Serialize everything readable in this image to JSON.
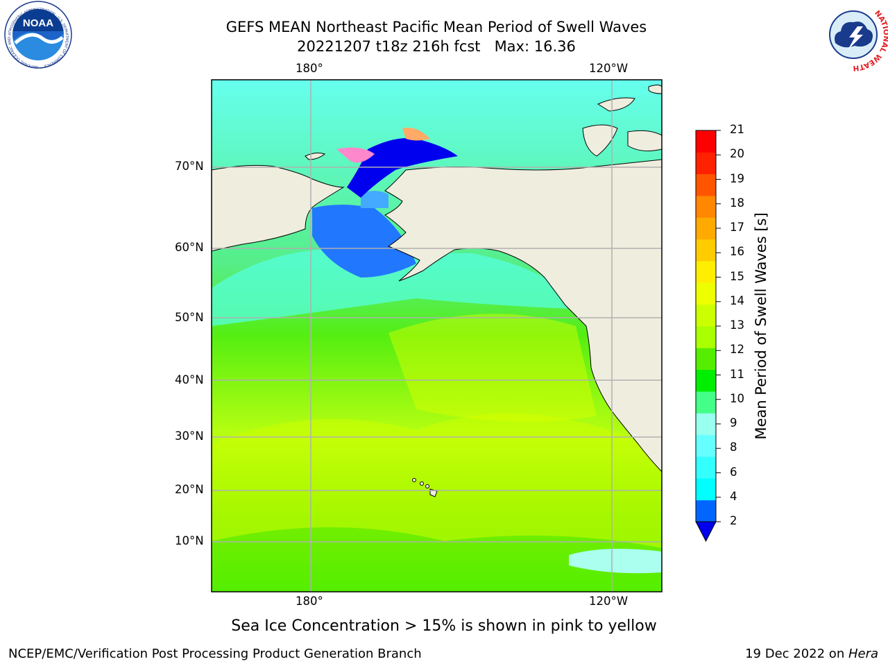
{
  "header": {
    "title_line1": "GEFS MEAN Northeast Pacific Mean Period of Swell Waves",
    "title_line2": "20221207 t18z 216h fcst   Max: 16.36"
  },
  "logos": {
    "noaa_text": "NOAA",
    "noaa_ring_text": "NATIONAL OCEANIC AND ATMOSPHERIC ADMINISTRATION · U.S. DEPARTMENT OF COMMERCE",
    "nws_ring_text": "NATIONAL WEATHER SERVICE"
  },
  "map": {
    "lon_labels_top": [
      "180°",
      "120°W"
    ],
    "lon_labels_bottom": [
      "180°",
      "120°W"
    ],
    "lat_labels": [
      "70°N",
      "60°N",
      "50°N",
      "40°N",
      "30°N",
      "20°N",
      "10°N"
    ],
    "colors": {
      "land": "#efedde",
      "grid": "#b0b0b0"
    }
  },
  "colorbar": {
    "label": "Mean Period of Swell Waves [s]",
    "ticks": [
      "21",
      "20",
      "19",
      "18",
      "17",
      "16",
      "15",
      "14",
      "13",
      "12",
      "11",
      "10",
      "9",
      "8",
      "6",
      "4",
      "2"
    ],
    "colors": [
      "#0000ee",
      "#0066ff",
      "#00ffff",
      "#33ffff",
      "#66ffff",
      "#99ffee",
      "#44ff88",
      "#00ee00",
      "#55ee00",
      "#aaff00",
      "#ccff00",
      "#eeff00",
      "#ffee00",
      "#ffcc00",
      "#ffaa00",
      "#ff8800",
      "#ff5500",
      "#ff2200",
      "#ff0000"
    ]
  },
  "caption": "Sea Ice Concentration > 15% is shown in pink to yellow",
  "footer": {
    "left": "NCEP/EMC/Verification Post Processing Product Generation Branch",
    "right_date": "19 Dec 2022 on ",
    "right_host": "Hera"
  }
}
